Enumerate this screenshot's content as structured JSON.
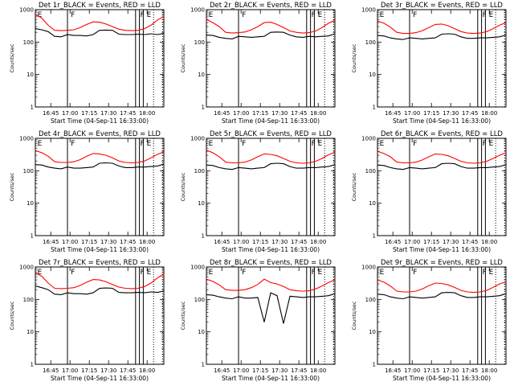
{
  "chart_data": {
    "type": "line",
    "layout": "3x3 grid",
    "y_scale": "log",
    "ylim": [
      1,
      1000
    ],
    "ytick_labels": [
      "1",
      "10",
      "100",
      "1000"
    ],
    "ylabel": "Counts/sec",
    "xlabel": "Start Time (04-Sep-11 16:33:00)",
    "x_units": "minutes since 16:33:00",
    "xlim": [
      0,
      100
    ],
    "xtick_values": [
      12,
      27,
      42,
      57,
      72,
      87
    ],
    "xtick_labels": [
      "16:45",
      "17:00",
      "17:15",
      "17:30",
      "17:45",
      "18:00"
    ],
    "series_colors": {
      "events": "#000000",
      "lld": "#ff0000"
    },
    "markers": {
      "solid_lines": [
        25,
        78,
        81,
        84
      ],
      "dotted_lines": [
        92,
        99
      ],
      "labels": [
        {
          "text": "E",
          "x": 1
        },
        {
          "text": "F",
          "x": 27
        },
        {
          "text": "F",
          "x": 81
        },
        {
          "text": "E",
          "x": 86
        }
      ]
    },
    "time_points": [
      0,
      5,
      10,
      15,
      20,
      25,
      30,
      35,
      40,
      45,
      50,
      55,
      60,
      65,
      70,
      75,
      80,
      85,
      90,
      95,
      100
    ],
    "panels": [
      {
        "title": "Det 1r_BLACK = Events, RED = LLD",
        "series": [
          {
            "name": "Events",
            "values": [
              260,
              240,
              210,
              150,
              145,
              170,
              160,
              160,
              155,
              170,
              230,
              235,
              230,
              175,
              170,
              170,
              175,
              170,
              180,
              170,
              185
            ]
          },
          {
            "name": "LLD",
            "values": [
              700,
              550,
              330,
              230,
              225,
              230,
              240,
              280,
              350,
              420,
              410,
              360,
              300,
              250,
              230,
              225,
              230,
              260,
              330,
              480,
              620
            ]
          }
        ]
      },
      {
        "title": "Det 2r_BLACK = Events, RED = LLD",
        "series": [
          {
            "name": "Events",
            "values": [
              165,
              160,
              140,
              130,
              125,
              150,
              145,
              140,
              145,
              150,
              200,
              205,
              200,
              165,
              145,
              140,
              150,
              145,
              150,
              155,
              180
            ]
          },
          {
            "name": "LLD",
            "values": [
              500,
              400,
              300,
              200,
              190,
              195,
              205,
              240,
              300,
              400,
              410,
              350,
              280,
              220,
              200,
              190,
              195,
              220,
              280,
              380,
              470
            ]
          }
        ]
      },
      {
        "title": "Det 3r_BLACK = Events, RED = LLD",
        "series": [
          {
            "name": "Events",
            "values": [
              160,
              155,
              135,
              125,
              120,
              135,
              130,
              125,
              130,
              135,
              175,
              180,
              175,
              145,
              130,
              130,
              135,
              135,
              140,
              145,
              165
            ]
          },
          {
            "name": "LLD",
            "values": [
              450,
              380,
              290,
              200,
              185,
              185,
              195,
              225,
              280,
              350,
              360,
              320,
              260,
              210,
              190,
              185,
              190,
              210,
              260,
              330,
              400
            ]
          }
        ]
      },
      {
        "title": "Det 4r_BLACK = Events, RED = LLD",
        "series": [
          {
            "name": "Events",
            "values": [
              155,
              150,
              130,
              120,
              115,
              130,
              120,
              120,
              125,
              130,
              170,
              175,
              170,
              140,
              125,
              125,
              130,
              130,
              135,
              140,
              160
            ]
          },
          {
            "name": "LLD",
            "values": [
              420,
              360,
              280,
              190,
              180,
              180,
              190,
              220,
              280,
              340,
              330,
              300,
              250,
              200,
              180,
              175,
              180,
              200,
              250,
              320,
              380
            ]
          }
        ]
      },
      {
        "title": "Det 5r_BLACK = Events, RED = LLD",
        "series": [
          {
            "name": "Events",
            "values": [
              150,
              145,
              125,
              115,
              110,
              125,
              120,
              115,
              120,
              125,
              165,
              170,
              165,
              135,
              120,
              120,
              125,
              125,
              130,
              135,
              155
            ]
          },
          {
            "name": "LLD",
            "values": [
              430,
              360,
              270,
              185,
              175,
              175,
              185,
              215,
              270,
              330,
              320,
              290,
              240,
              195,
              175,
              170,
              175,
              195,
              240,
              310,
              370
            ]
          }
        ]
      },
      {
        "title": "Det 6r_BLACK = Events, RED = LLD",
        "series": [
          {
            "name": "Events",
            "values": [
              150,
              145,
              125,
              115,
              110,
              125,
              120,
              115,
              120,
              125,
              165,
              170,
              165,
              135,
              120,
              120,
              125,
              125,
              130,
              135,
              155
            ]
          },
          {
            "name": "LLD",
            "values": [
              400,
              340,
              270,
              185,
              175,
              175,
              185,
              215,
              270,
              330,
              320,
              290,
              240,
              195,
              175,
              170,
              175,
              195,
              240,
              300,
              360
            ]
          }
        ]
      },
      {
        "title": "Det 7r_BLACK = Events, RED = LLD",
        "series": [
          {
            "name": "Events",
            "values": [
              260,
              230,
              200,
              145,
              140,
              160,
              150,
              150,
              145,
              160,
              220,
              225,
              220,
              165,
              160,
              160,
              165,
              160,
              170,
              165,
              180
            ]
          },
          {
            "name": "LLD",
            "values": [
              650,
              520,
              320,
              220,
              215,
              220,
              230,
              270,
              340,
              410,
              400,
              350,
              290,
              240,
              220,
              215,
              220,
              250,
              320,
              460,
              600
            ]
          }
        ]
      },
      {
        "title": "Det 8r_BLACK = Events, RED = LLD",
        "series": [
          {
            "name": "Events",
            "values": [
              140,
              135,
              120,
              110,
              105,
              120,
              110,
              110,
              115,
              20,
              160,
              130,
              18,
              125,
              120,
              115,
              120,
              120,
              125,
              130,
              150
            ]
          },
          {
            "name": "LLD",
            "values": [
              420,
              360,
              280,
              200,
              190,
              190,
              200,
              230,
              290,
              420,
              330,
              300,
              250,
              200,
              185,
              180,
              185,
              210,
              260,
              330,
              400
            ]
          }
        ]
      },
      {
        "title": "Det 9r_BLACK = Events, RED = LLD",
        "series": [
          {
            "name": "Events",
            "values": [
              145,
              140,
              120,
              110,
              105,
              120,
              115,
              110,
              115,
              120,
              160,
              165,
              160,
              130,
              115,
              115,
              120,
              120,
              125,
              130,
              150
            ]
          },
          {
            "name": "LLD",
            "values": [
              400,
              340,
              260,
              180,
              170,
              170,
              180,
              210,
              265,
              320,
              310,
              280,
              235,
              190,
              170,
              165,
              170,
              190,
              235,
              300,
              350
            ]
          }
        ]
      }
    ]
  }
}
